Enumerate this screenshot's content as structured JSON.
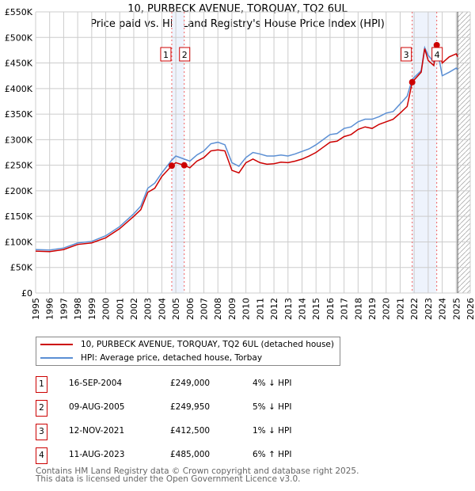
{
  "title": "10, PURBECK AVENUE, TORQUAY, TQ2 6UL",
  "subtitle": "Price paid vs. HM Land Registry's House Price Index (HPI)",
  "chart_data": {
    "type": "line",
    "xlim": [
      1995,
      2026
    ],
    "ylim": [
      0,
      550000
    ],
    "y_ticks": [
      0,
      50000,
      100000,
      150000,
      200000,
      250000,
      300000,
      350000,
      400000,
      450000,
      500000,
      550000
    ],
    "y_tick_labels": [
      "£0",
      "£50K",
      "£100K",
      "£150K",
      "£200K",
      "£250K",
      "£300K",
      "£350K",
      "£400K",
      "£450K",
      "£500K",
      "£550K"
    ],
    "x_ticks": [
      1995,
      1996,
      1997,
      1998,
      1999,
      2000,
      2001,
      2002,
      2003,
      2004,
      2005,
      2006,
      2007,
      2008,
      2009,
      2010,
      2011,
      2012,
      2013,
      2014,
      2015,
      2016,
      2017,
      2018,
      2019,
      2020,
      2021,
      2022,
      2023,
      2024,
      2025,
      2026
    ],
    "x_tick_labels": [
      "1995",
      "1996",
      "1997",
      "1998",
      "1999",
      "2000",
      "2001",
      "2002",
      "2003",
      "2004",
      "2005",
      "2006",
      "2007",
      "2008",
      "2009",
      "2010",
      "2011",
      "2012",
      "2013",
      "2014",
      "2015",
      "2016",
      "2017",
      "2018",
      "2019",
      "2020",
      "2021",
      "2022",
      "2023",
      "2024",
      "2025",
      "2026"
    ],
    "grid": true,
    "x": [
      1995,
      1996,
      1997,
      1998,
      1999,
      2000,
      2001,
      2002,
      2002.5,
      2003,
      2003.5,
      2004,
      2004.71,
      2005,
      2005.6,
      2006,
      2006.5,
      2007,
      2007.5,
      2008,
      2008.5,
      2009,
      2009.5,
      2010,
      2010.5,
      2011,
      2011.5,
      2012,
      2012.5,
      2013,
      2013.5,
      2014,
      2014.5,
      2015,
      2015.5,
      2016,
      2016.5,
      2017,
      2017.5,
      2018,
      2018.5,
      2019,
      2019.5,
      2020,
      2020.5,
      2021,
      2021.5,
      2021.86,
      2022.5,
      2022.75,
      2023,
      2023.4,
      2023.61,
      2023.8,
      2024,
      2024.5,
      2025,
      2025.1
    ],
    "series": [
      {
        "name": "10, PURBECK AVENUE, TORQUAY, TQ2 6UL (detached house)",
        "color": "#cc0000",
        "values": [
          82,
          81,
          85,
          95,
          98,
          108,
          126,
          150,
          163,
          197,
          205,
          228,
          249,
          255,
          249.95,
          245,
          258,
          265,
          278,
          280,
          278,
          240,
          235,
          255,
          262,
          255,
          252,
          253,
          256,
          255,
          258,
          262,
          268,
          275,
          285,
          295,
          297,
          306,
          310,
          320,
          325,
          322,
          330,
          335,
          340,
          352,
          365,
          412.5,
          432,
          478,
          455,
          445,
          485,
          478,
          450,
          462,
          468,
          462
        ]
      },
      {
        "name": "HPI: Average price, detached house, Torbay",
        "color": "#5b8fd4",
        "values": [
          85,
          84,
          88,
          98,
          101,
          112,
          130,
          155,
          170,
          205,
          215,
          235,
          260,
          268,
          262,
          258,
          270,
          278,
          292,
          295,
          290,
          255,
          248,
          265,
          275,
          272,
          268,
          268,
          270,
          268,
          272,
          277,
          282,
          290,
          300,
          310,
          312,
          322,
          325,
          335,
          340,
          340,
          345,
          352,
          355,
          370,
          385,
          418,
          435,
          480,
          465,
          452,
          458,
          455,
          425,
          432,
          440,
          437
        ]
      }
    ],
    "value_unit": "£K",
    "sales": [
      {
        "label": "1",
        "x": 2004.71,
        "price": 249000,
        "date": "16-SEP-2004",
        "price_text": "£249,000",
        "hpi_text": "4% ↓ HPI"
      },
      {
        "label": "2",
        "x": 2005.6,
        "price": 249950,
        "date": "09-AUG-2005",
        "price_text": "£249,950",
        "hpi_text": "5% ↓ HPI"
      },
      {
        "label": "3",
        "x": 2021.86,
        "price": 412500,
        "date": "12-NOV-2021",
        "price_text": "£412,500",
        "hpi_text": "1% ↓ HPI"
      },
      {
        "label": "4",
        "x": 2023.61,
        "price": 485000,
        "date": "11-AUG-2023",
        "price_text": "£485,000",
        "hpi_text": "6% ↑ HPI"
      }
    ],
    "shaded_ranges": [
      [
        2004.71,
        2005.6
      ],
      [
        2021.86,
        2023.61
      ]
    ],
    "forecast_hatch_from": 2025.1
  },
  "legend": {
    "red": "10, PURBECK AVENUE, TORQUAY, TQ2 6UL (detached house)",
    "blue": "HPI: Average price, detached house, Torbay"
  },
  "footer": {
    "line1": "Contains HM Land Registry data © Crown copyright and database right 2025.",
    "line2": "This data is licensed under the Open Government Licence v3.0."
  }
}
